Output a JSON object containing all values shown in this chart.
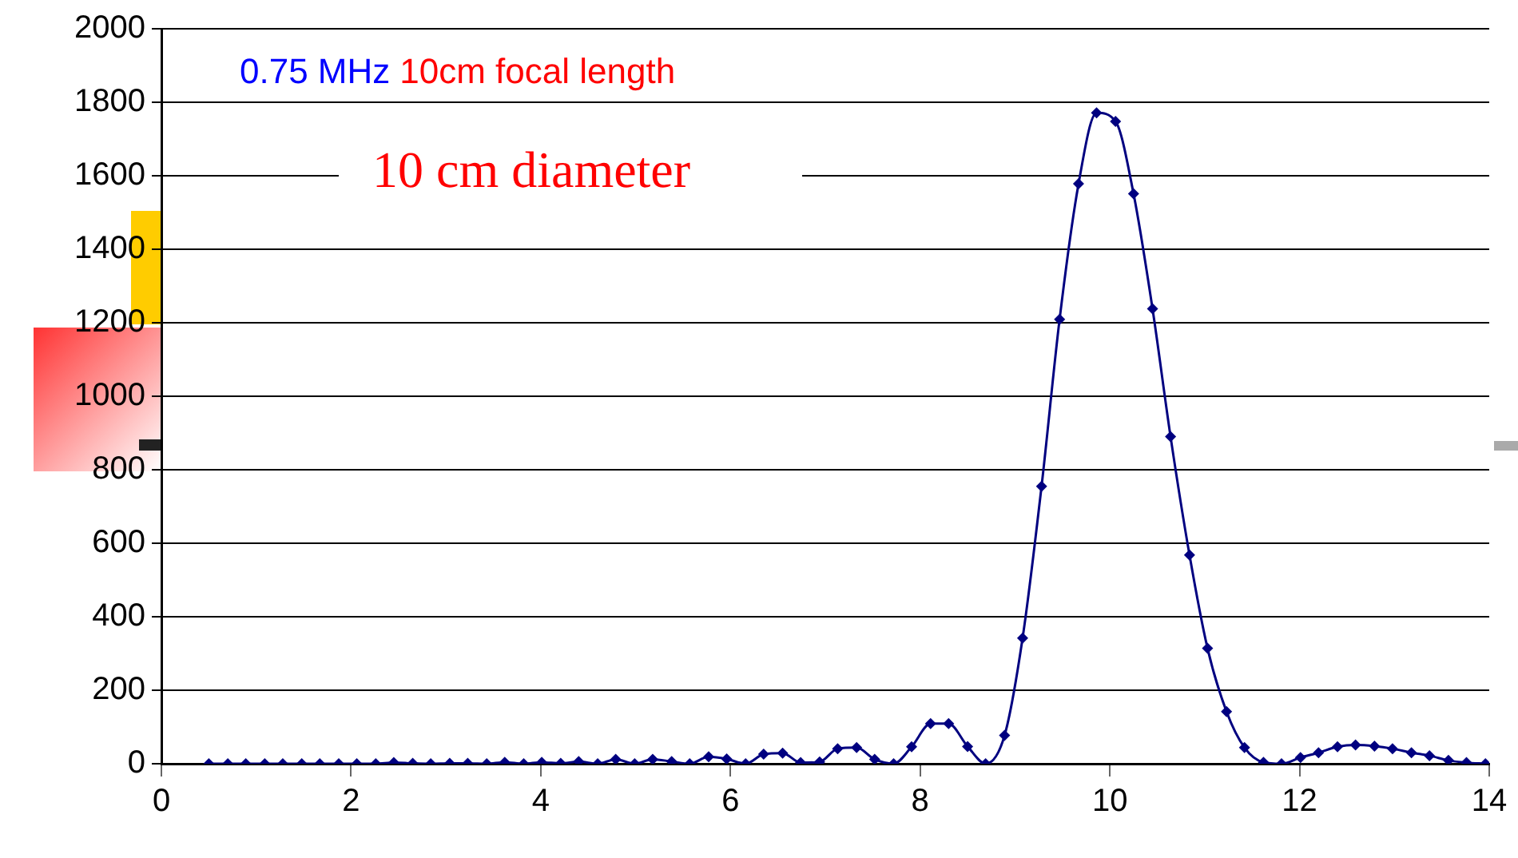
{
  "chart_data": {
    "type": "line",
    "color": "#000080",
    "marker": "diamond",
    "line_style": "solid",
    "grid": "y",
    "annotations": [
      "0.75 MHz",
      "10cm focal length",
      "10 cm diameter"
    ],
    "xlim": [
      0,
      14
    ],
    "xticks": [
      0,
      2,
      4,
      6,
      8,
      10,
      12,
      14
    ],
    "ylim": [
      0,
      2000
    ],
    "yticks": [
      0,
      200,
      400,
      600,
      800,
      1000,
      1200,
      1400,
      1600,
      1800,
      2000
    ],
    "x": [
      0.5,
      0.7,
      0.89,
      1.09,
      1.28,
      1.48,
      1.67,
      1.87,
      2.06,
      2.26,
      2.45,
      2.65,
      2.84,
      3.04,
      3.23,
      3.43,
      3.62,
      3.82,
      4.01,
      4.21,
      4.4,
      4.6,
      4.79,
      4.99,
      5.18,
      5.38,
      5.57,
      5.77,
      5.96,
      6.16,
      6.35,
      6.55,
      6.74,
      6.94,
      7.13,
      7.33,
      7.52,
      7.72,
      7.91,
      8.11,
      8.3,
      8.5,
      8.69,
      8.89,
      9.08,
      9.28,
      9.47,
      9.67,
      9.86,
      10.06,
      10.25,
      10.45,
      10.64,
      10.84,
      11.03,
      11.23,
      11.42,
      11.62,
      11.81,
      12.01,
      12.2,
      12.4,
      12.59,
      12.79,
      12.98,
      13.18,
      13.37,
      13.57,
      13.76,
      13.96
    ],
    "values": [
      0,
      0,
      0,
      0,
      0,
      0,
      0,
      0,
      0,
      0,
      3,
      1,
      0,
      1,
      1,
      0,
      4,
      0,
      4,
      1,
      6,
      0,
      12,
      0,
      12,
      6,
      0,
      19,
      13,
      0,
      26,
      29,
      3,
      5,
      41,
      44,
      12,
      0,
      46,
      109,
      109,
      47,
      0,
      77,
      342,
      755,
      1209,
      1578,
      1771,
      1748,
      1551,
      1238,
      890,
      568,
      314,
      142,
      44,
      4,
      0,
      17,
      30,
      46,
      51,
      48,
      41,
      30,
      22,
      9,
      3,
      0
    ]
  }
}
